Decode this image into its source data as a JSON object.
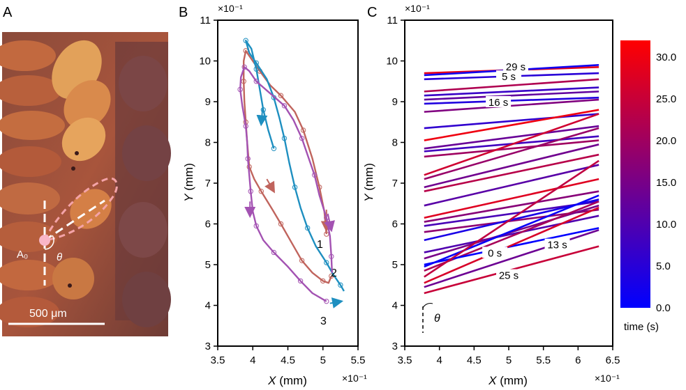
{
  "panel_labels": [
    "A",
    "B",
    "C"
  ],
  "panel_a": {
    "anchor_label": "A₀",
    "angle_label": "θ",
    "scale_bar_label": "500 μm",
    "colors": {
      "highlight_dashes": "#f4a3a8",
      "guide_lines": "#ffffff",
      "anchor_dot": "#f9b6c8"
    }
  },
  "chart_data": [
    {
      "type": "line",
      "panel": "B",
      "xlabel_var": "X",
      "xlabel_unit": " (mm)",
      "ylabel_var": "Y",
      "ylabel_unit": " (mm)",
      "x_multiplier": "×10⁻¹",
      "y_multiplier": "×10⁻¹",
      "xlim": [
        3.5,
        5.5
      ],
      "ylim": [
        3,
        11
      ],
      "x_ticks": [
        3.5,
        4,
        4.5,
        5,
        5.5
      ],
      "x_tick_labels": [
        "3.5",
        "4",
        "4.5",
        "5",
        "5.5"
      ],
      "y_ticks": [
        3,
        4,
        5,
        6,
        7,
        8,
        9,
        10,
        11
      ],
      "y_tick_labels": [
        "3",
        "4",
        "5",
        "6",
        "7",
        "8",
        "9",
        "10",
        "11"
      ],
      "series": [
        {
          "name": "1",
          "label": "1",
          "color": "#c0645d",
          "points": [
            [
              5.05,
              5.75
            ],
            [
              5.02,
              6.3
            ],
            [
              4.95,
              6.9
            ],
            [
              4.85,
              7.6
            ],
            [
              4.72,
              8.3
            ],
            [
              4.6,
              8.75
            ],
            [
              4.4,
              9.15
            ],
            [
              4.25,
              9.4
            ],
            [
              4.1,
              9.75
            ],
            [
              3.98,
              10.05
            ],
            [
              3.9,
              10.25
            ],
            [
              3.87,
              10.0
            ],
            [
              3.87,
              9.5
            ],
            [
              3.88,
              9.0
            ],
            [
              3.9,
              8.5
            ],
            [
              3.92,
              8.0
            ],
            [
              3.95,
              7.4
            ],
            [
              4.02,
              7.1
            ],
            [
              4.12,
              6.8
            ],
            [
              4.28,
              6.35
            ],
            [
              4.4,
              6.0
            ],
            [
              4.55,
              5.55
            ],
            [
              4.7,
              5.1
            ],
            [
              4.85,
              4.8
            ],
            [
              5.0,
              4.6
            ],
            [
              5.08,
              4.55
            ],
            [
              5.12,
              4.72
            ]
          ],
          "arrows": [
            [
              4.2,
              7.1,
              4.3,
              6.8
            ],
            [
              5.05,
              6.35,
              5.05,
              5.85
            ]
          ]
        },
        {
          "name": "2",
          "label": "2",
          "color": "#1e8fc0",
          "points": [
            [
              4.3,
              7.85
            ],
            [
              4.22,
              8.3
            ],
            [
              4.15,
              8.8
            ],
            [
              4.1,
              9.3
            ],
            [
              4.05,
              9.8
            ],
            [
              3.98,
              10.3
            ],
            [
              3.9,
              10.5
            ],
            [
              3.95,
              10.2
            ],
            [
              4.05,
              9.95
            ],
            [
              4.2,
              9.55
            ],
            [
              4.3,
              9.1
            ],
            [
              4.38,
              8.6
            ],
            [
              4.45,
              8.1
            ],
            [
              4.52,
              7.5
            ],
            [
              4.6,
              6.9
            ],
            [
              4.68,
              6.4
            ],
            [
              4.78,
              5.9
            ],
            [
              4.9,
              5.45
            ],
            [
              5.05,
              5.05
            ],
            [
              5.15,
              4.75
            ],
            [
              5.25,
              4.5
            ],
            [
              5.3,
              4.35
            ]
          ],
          "arrows": [
            [
              4.14,
              8.85,
              4.12,
              8.45
            ],
            [
              5.1,
              4.05,
              5.26,
              4.1
            ]
          ]
        },
        {
          "name": "3",
          "label": "3",
          "color": "#a352b2",
          "points": [
            [
              5.05,
              4.1
            ],
            [
              4.85,
              4.3
            ],
            [
              4.68,
              4.6
            ],
            [
              4.5,
              4.95
            ],
            [
              4.3,
              5.3
            ],
            [
              4.15,
              5.6
            ],
            [
              4.05,
              5.95
            ],
            [
              4.0,
              6.3
            ],
            [
              3.97,
              6.8
            ],
            [
              3.95,
              7.2
            ],
            [
              3.93,
              7.6
            ],
            [
              3.92,
              8.0
            ],
            [
              3.9,
              8.4
            ],
            [
              3.85,
              8.9
            ],
            [
              3.82,
              9.3
            ],
            [
              3.83,
              9.6
            ],
            [
              3.88,
              9.85
            ],
            [
              3.95,
              9.75
            ],
            [
              4.05,
              9.5
            ],
            [
              4.25,
              9.2
            ],
            [
              4.45,
              8.9
            ],
            [
              4.58,
              8.55
            ],
            [
              4.7,
              8.1
            ],
            [
              4.8,
              7.6
            ],
            [
              4.88,
              7.2
            ],
            [
              4.95,
              6.7
            ],
            [
              5.05,
              6.15
            ],
            [
              5.1,
              5.7
            ],
            [
              5.12,
              5.2
            ],
            [
              5.13,
              4.8
            ]
          ],
          "arrows": [
            [
              3.96,
              6.55,
              3.96,
              6.2
            ],
            [
              5.07,
              6.25,
              5.12,
              5.85
            ]
          ]
        }
      ]
    },
    {
      "type": "line",
      "panel": "C",
      "xlabel_var": "X",
      "xlabel_unit": " (mm)",
      "ylabel_var": "Y",
      "ylabel_unit": " (mm)",
      "x_multiplier": "×10⁻¹",
      "y_multiplier": "×10⁻¹",
      "xlim": [
        3.5,
        6.5
      ],
      "ylim": [
        3,
        11
      ],
      "x_ticks": [
        3.5,
        4,
        4.5,
        5,
        5.5,
        6,
        6.5
      ],
      "x_tick_labels": [
        "3.5",
        "4",
        "4.5",
        "5",
        "5.5",
        "6",
        "6.5"
      ],
      "y_ticks": [
        3,
        4,
        5,
        6,
        7,
        8,
        9,
        10,
        11
      ],
      "y_tick_labels": [
        "3",
        "4",
        "5",
        "6",
        "7",
        "8",
        "9",
        "10",
        "11"
      ],
      "angle_label": "θ",
      "x_start": 3.78,
      "x_end": 6.3,
      "lines": [
        {
          "t": 29,
          "y0": 9.7,
          "y1": 9.85
        },
        {
          "t": 2,
          "y0": 9.65,
          "y1": 9.9
        },
        {
          "t": 5,
          "y0": 9.55,
          "y1": 9.7
        },
        {
          "t": 22,
          "y0": 9.25,
          "y1": 9.55
        },
        {
          "t": 7,
          "y0": 9.15,
          "y1": 9.35
        },
        {
          "t": 12,
          "y0": 9.05,
          "y1": 9.25
        },
        {
          "t": 4,
          "y0": 8.95,
          "y1": 9.1
        },
        {
          "t": 16,
          "y0": 8.75,
          "y1": 9.05
        },
        {
          "t": 6,
          "y0": 8.35,
          "y1": 8.7
        },
        {
          "t": 30,
          "y0": 8.05,
          "y1": 8.8
        },
        {
          "t": 13,
          "y0": 7.85,
          "y1": 8.4
        },
        {
          "t": 8,
          "y0": 7.78,
          "y1": 8.15
        },
        {
          "t": 20,
          "y0": 7.65,
          "y1": 8.05
        },
        {
          "t": 26,
          "y0": 7.2,
          "y1": 8.7
        },
        {
          "t": 19,
          "y0": 7.1,
          "y1": 8.35
        },
        {
          "t": 14,
          "y0": 6.9,
          "y1": 7.95
        },
        {
          "t": 23,
          "y0": 6.8,
          "y1": 7.7
        },
        {
          "t": 11,
          "y0": 6.45,
          "y1": 7.45
        },
        {
          "t": 28,
          "y0": 6.15,
          "y1": 7.1
        },
        {
          "t": 17,
          "y0": 6.05,
          "y1": 6.8
        },
        {
          "t": 9,
          "y0": 5.95,
          "y1": 6.55
        },
        {
          "t": 18,
          "y0": 5.8,
          "y1": 6.35
        },
        {
          "t": 3,
          "y0": 5.6,
          "y1": 6.6
        },
        {
          "t": 10,
          "y0": 5.3,
          "y1": 6.2
        },
        {
          "t": 15,
          "y0": 5.15,
          "y1": 6.45
        },
        {
          "t": 1,
          "y0": 4.95,
          "y1": 6.7
        },
        {
          "t": 21,
          "y0": 4.85,
          "y1": 6.55
        },
        {
          "t": 0,
          "y0": 5.0,
          "y1": 5.9
        },
        {
          "t": 24,
          "y0": 4.7,
          "y1": 7.55
        },
        {
          "t": 27,
          "y0": 4.55,
          "y1": 6.4
        },
        {
          "t": 13.5,
          "y0": 4.45,
          "y1": 5.85
        },
        {
          "t": 25,
          "y0": 4.3,
          "y1": 5.45
        }
      ],
      "annotations": [
        {
          "text": "29 s",
          "x": 5.1,
          "y": 9.82
        },
        {
          "text": "5 s",
          "x": 5.0,
          "y": 9.58
        },
        {
          "text": "16 s",
          "x": 4.85,
          "y": 8.95
        },
        {
          "text": "0 s",
          "x": 4.8,
          "y": 5.25
        },
        {
          "text": "13 s",
          "x": 5.7,
          "y": 5.45
        },
        {
          "text": "25 s",
          "x": 5.0,
          "y": 4.7
        }
      ],
      "colorbar": {
        "min": 0,
        "max": 32,
        "ticks": [
          "0.0",
          "5.0",
          "10.0",
          "15.0",
          "20.0",
          "25.0",
          "30.0"
        ],
        "tick_values": [
          0,
          5,
          10,
          15,
          20,
          25,
          30
        ],
        "label": "time (s)",
        "color_low": "#0000ff",
        "color_high": "#ff0000"
      }
    }
  ]
}
